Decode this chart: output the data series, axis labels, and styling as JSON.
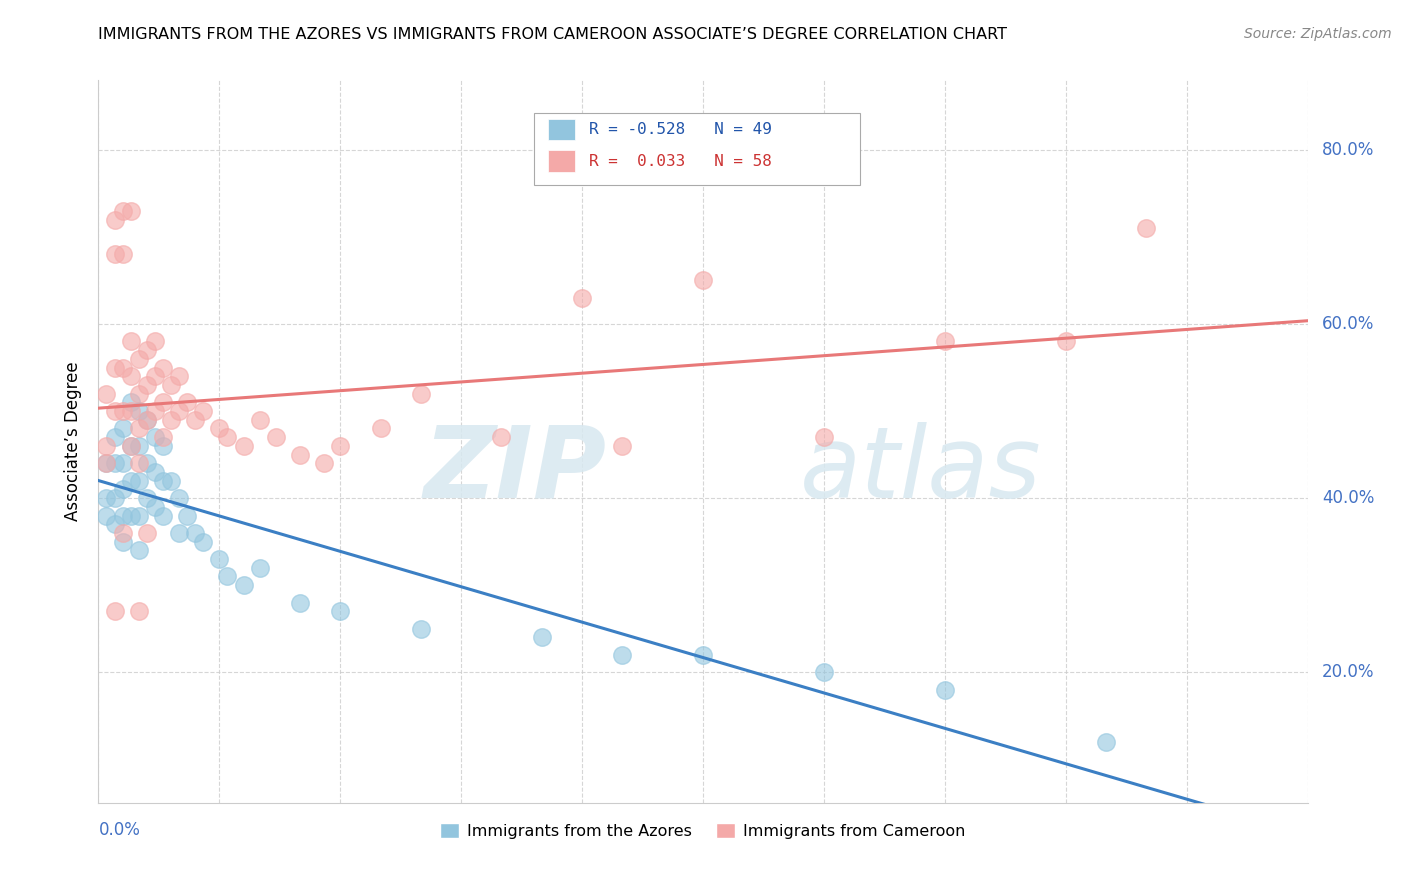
{
  "title": "IMMIGRANTS FROM THE AZORES VS IMMIGRANTS FROM CAMEROON ASSOCIATE’S DEGREE CORRELATION CHART",
  "source": "Source: ZipAtlas.com",
  "ylabel": "Associate’s Degree",
  "xlim": [
    0.0,
    0.15
  ],
  "ylim": [
    0.05,
    0.88
  ],
  "ytick_positions": [
    0.2,
    0.4,
    0.6,
    0.8
  ],
  "ytick_labels": [
    "20.0%",
    "40.0%",
    "60.0%",
    "80.0%"
  ],
  "azores_color": "#92c5de",
  "cameroon_color": "#f4a9a8",
  "azores_line_color": "#3b7fc4",
  "cameroon_line_color": "#e87878",
  "azores_x": [
    0.001,
    0.001,
    0.001,
    0.002,
    0.002,
    0.002,
    0.002,
    0.003,
    0.003,
    0.003,
    0.003,
    0.003,
    0.004,
    0.004,
    0.004,
    0.004,
    0.005,
    0.005,
    0.005,
    0.005,
    0.005,
    0.006,
    0.006,
    0.006,
    0.007,
    0.007,
    0.007,
    0.008,
    0.008,
    0.008,
    0.009,
    0.01,
    0.01,
    0.011,
    0.012,
    0.013,
    0.015,
    0.016,
    0.018,
    0.02,
    0.025,
    0.03,
    0.04,
    0.055,
    0.065,
    0.075,
    0.09,
    0.105,
    0.125
  ],
  "azores_y": [
    0.44,
    0.4,
    0.38,
    0.47,
    0.44,
    0.4,
    0.37,
    0.48,
    0.44,
    0.41,
    0.38,
    0.35,
    0.51,
    0.46,
    0.42,
    0.38,
    0.5,
    0.46,
    0.42,
    0.38,
    0.34,
    0.49,
    0.44,
    0.4,
    0.47,
    0.43,
    0.39,
    0.46,
    0.42,
    0.38,
    0.42,
    0.4,
    0.36,
    0.38,
    0.36,
    0.35,
    0.33,
    0.31,
    0.3,
    0.32,
    0.28,
    0.27,
    0.25,
    0.24,
    0.22,
    0.22,
    0.2,
    0.18,
    0.12
  ],
  "cameroon_x": [
    0.001,
    0.001,
    0.001,
    0.002,
    0.002,
    0.002,
    0.002,
    0.003,
    0.003,
    0.003,
    0.003,
    0.004,
    0.004,
    0.004,
    0.004,
    0.005,
    0.005,
    0.005,
    0.005,
    0.006,
    0.006,
    0.006,
    0.007,
    0.007,
    0.007,
    0.008,
    0.008,
    0.008,
    0.009,
    0.009,
    0.01,
    0.01,
    0.011,
    0.012,
    0.013,
    0.015,
    0.016,
    0.018,
    0.02,
    0.022,
    0.025,
    0.028,
    0.03,
    0.035,
    0.04,
    0.05,
    0.06,
    0.065,
    0.075,
    0.09,
    0.105,
    0.12,
    0.13,
    0.002,
    0.003,
    0.004,
    0.005,
    0.006
  ],
  "cameroon_y": [
    0.52,
    0.46,
    0.44,
    0.72,
    0.68,
    0.55,
    0.5,
    0.73,
    0.68,
    0.55,
    0.5,
    0.58,
    0.54,
    0.5,
    0.46,
    0.56,
    0.52,
    0.48,
    0.44,
    0.57,
    0.53,
    0.49,
    0.58,
    0.54,
    0.5,
    0.55,
    0.51,
    0.47,
    0.53,
    0.49,
    0.54,
    0.5,
    0.51,
    0.49,
    0.5,
    0.48,
    0.47,
    0.46,
    0.49,
    0.47,
    0.45,
    0.44,
    0.46,
    0.48,
    0.52,
    0.47,
    0.63,
    0.46,
    0.65,
    0.47,
    0.58,
    0.58,
    0.71,
    0.27,
    0.36,
    0.73,
    0.27,
    0.36
  ]
}
